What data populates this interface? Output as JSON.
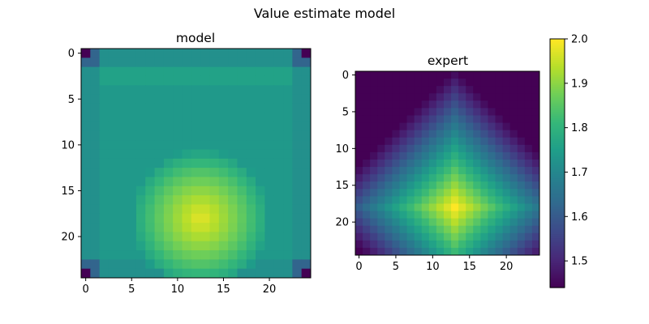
{
  "chart_data": [
    {
      "type": "heatmap",
      "suptitle": "Value estimate model",
      "title": "model",
      "rows": 25,
      "cols": 25,
      "xticks": [
        0,
        5,
        10,
        15,
        20
      ],
      "yticks": [
        0,
        5,
        10,
        15,
        20
      ],
      "value_model": {
        "base": 1.74,
        "outer_ring": 1.72,
        "corner": 1.44,
        "corner_neighbor": 1.62,
        "top_band": 1.76,
        "peak": {
          "row": 18,
          "col": 12.5,
          "value": 1.98,
          "radius": 7.5
        }
      }
    },
    {
      "type": "heatmap",
      "title": "expert",
      "rows": 25,
      "cols": 25,
      "xticks": [
        0,
        5,
        10,
        15,
        20
      ],
      "yticks": [
        0,
        5,
        10,
        15,
        20
      ],
      "value_model": {
        "min": 1.44,
        "max": 2.0,
        "peak": {
          "row": 18,
          "col": 13
        },
        "falloff_l1": 0.03
      }
    }
  ],
  "colorbar": {
    "colormap": "viridis",
    "vmin": 1.44,
    "vmax": 2.0,
    "ticks": [
      1.5,
      1.6,
      1.7,
      1.8,
      1.9,
      2.0
    ],
    "tick_labels": [
      "1.5",
      "1.6",
      "1.7",
      "1.8",
      "1.9",
      "2.0"
    ]
  }
}
